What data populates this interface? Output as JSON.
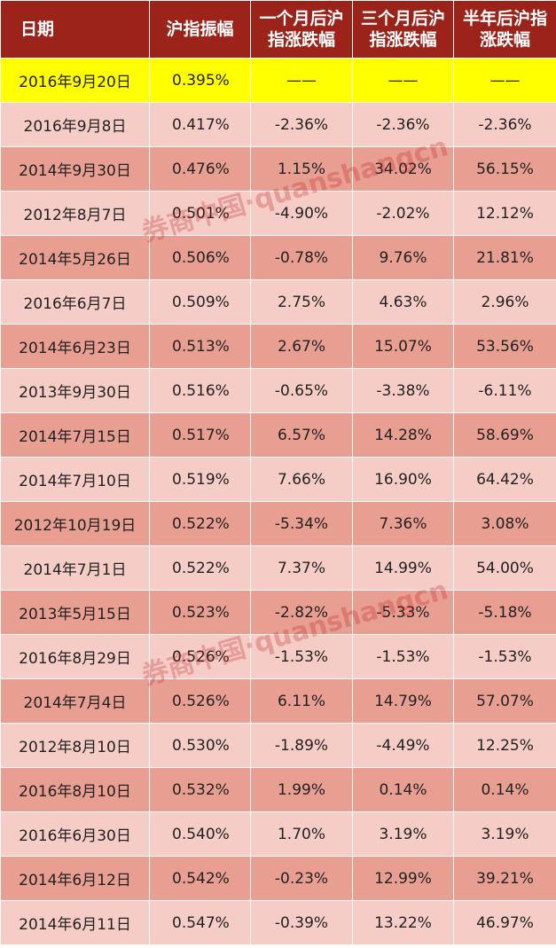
{
  "table": {
    "headers": [
      "日期",
      "沪指振幅",
      "一个月后沪\n指涨跌幅",
      "三个月后沪\n指涨跌幅",
      "半年后沪指\n涨跌幅"
    ],
    "rows": [
      {
        "date": "2016年9月20日",
        "amp": "0.395%",
        "m1": "——",
        "m3": "——",
        "m6": "——",
        "style": "hl"
      },
      {
        "date": "2016年9月8日",
        "amp": "0.417%",
        "m1": "-2.36%",
        "m3": "-2.36%",
        "m6": "-2.36%",
        "style": "light"
      },
      {
        "date": "2014年9月30日",
        "amp": "0.476%",
        "m1": "1.15%",
        "m3": "34.02%",
        "m6": "56.15%",
        "style": "dark"
      },
      {
        "date": "2012年8月7日",
        "amp": "0.501%",
        "m1": "-4.90%",
        "m3": "-2.02%",
        "m6": "12.12%",
        "style": "light"
      },
      {
        "date": "2014年5月26日",
        "amp": "0.506%",
        "m1": "-0.78%",
        "m3": "9.76%",
        "m6": "21.81%",
        "style": "dark"
      },
      {
        "date": "2016年6月7日",
        "amp": "0.509%",
        "m1": "2.75%",
        "m3": "4.63%",
        "m6": "2.96%",
        "style": "light"
      },
      {
        "date": "2014年6月23日",
        "amp": "0.513%",
        "m1": "2.67%",
        "m3": "15.07%",
        "m6": "53.56%",
        "style": "dark"
      },
      {
        "date": "2013年9月30日",
        "amp": "0.516%",
        "m1": "-0.65%",
        "m3": "-3.38%",
        "m6": "-6.11%",
        "style": "light"
      },
      {
        "date": "2014年7月15日",
        "amp": "0.517%",
        "m1": "6.57%",
        "m3": "14.28%",
        "m6": "58.69%",
        "style": "dark"
      },
      {
        "date": "2014年7月10日",
        "amp": "0.519%",
        "m1": "7.66%",
        "m3": "16.90%",
        "m6": "64.42%",
        "style": "light"
      },
      {
        "date": "2012年10月19日",
        "amp": "0.522%",
        "m1": "-5.34%",
        "m3": "7.36%",
        "m6": "3.08%",
        "style": "dark"
      },
      {
        "date": "2014年7月1日",
        "amp": "0.522%",
        "m1": "7.37%",
        "m3": "14.99%",
        "m6": "54.00%",
        "style": "light"
      },
      {
        "date": "2013年5月15日",
        "amp": "0.523%",
        "m1": "-2.82%",
        "m3": "-5.33%",
        "m6": "-5.18%",
        "style": "dark"
      },
      {
        "date": "2016年8月29日",
        "amp": "0.526%",
        "m1": "-1.53%",
        "m3": "-1.53%",
        "m6": "-1.53%",
        "style": "light"
      },
      {
        "date": "2014年7月4日",
        "amp": "0.526%",
        "m1": "6.11%",
        "m3": "14.79%",
        "m6": "57.07%",
        "style": "dark"
      },
      {
        "date": "2012年8月10日",
        "amp": "0.530%",
        "m1": "-1.89%",
        "m3": "-4.49%",
        "m6": "12.25%",
        "style": "light"
      },
      {
        "date": "2016年8月10日",
        "amp": "0.532%",
        "m1": "1.99%",
        "m3": "0.14%",
        "m6": "0.14%",
        "style": "dark"
      },
      {
        "date": "2016年6月30日",
        "amp": "0.540%",
        "m1": "1.70%",
        "m3": "3.19%",
        "m6": "3.19%",
        "style": "light"
      },
      {
        "date": "2014年6月12日",
        "amp": "0.542%",
        "m1": "-0.23%",
        "m3": "12.99%",
        "m6": "39.21%",
        "style": "dark"
      },
      {
        "date": "2014年6月11日",
        "amp": "0.547%",
        "m1": "-0.39%",
        "m3": "13.22%",
        "m6": "46.97%",
        "style": "light"
      }
    ]
  },
  "watermark": {
    "text": "券商中国·quanshangcn"
  },
  "colors": {
    "header_bg": "#9b2319",
    "highlight_row": "#ffff00",
    "light_row": "#f6cdc6",
    "dark_row": "#e99e92"
  }
}
